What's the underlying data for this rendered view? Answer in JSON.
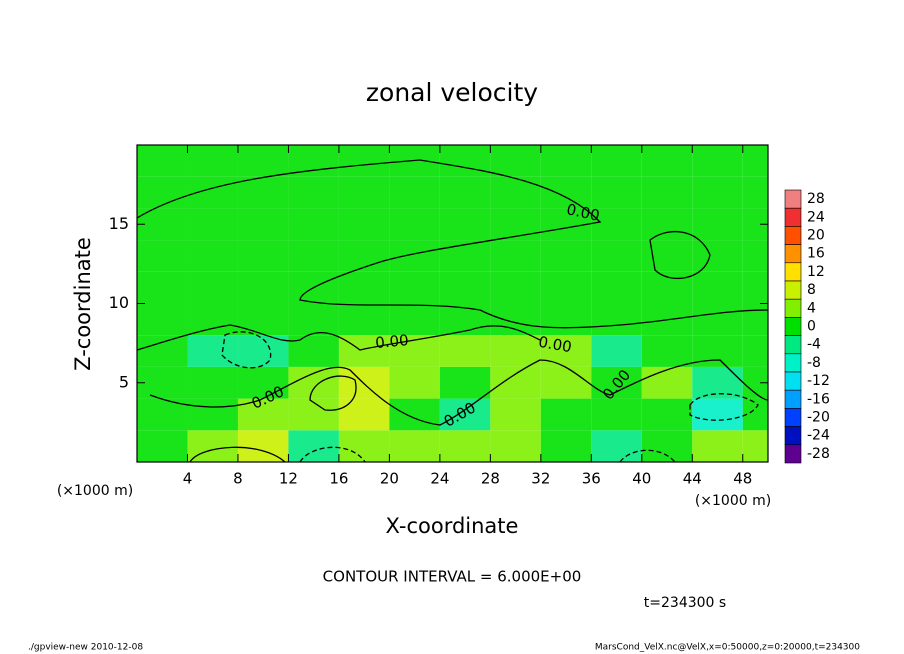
{
  "chart_data": {
    "type": "contour",
    "title": "zonal velocity",
    "x_label": "X-coordinate",
    "y_label": "Z-coordinate",
    "x_unit": "(×1000 m)",
    "y_unit": "(×1000 m)",
    "xlim": [
      0,
      50
    ],
    "ylim": [
      0,
      20
    ],
    "xticks": [
      4,
      8,
      12,
      16,
      20,
      24,
      28,
      32,
      36,
      40,
      44,
      48
    ],
    "yticks": [
      5,
      10,
      15
    ],
    "x": [
      2,
      6,
      10,
      14,
      18,
      22,
      26,
      30,
      34,
      38,
      42,
      46,
      50
    ],
    "z": [
      1,
      3,
      5,
      7,
      9,
      11,
      13,
      15,
      17,
      19
    ],
    "values": [
      [
        0,
        4,
        6,
        -6,
        4,
        2,
        4,
        2,
        0,
        -4,
        -2,
        4,
        4
      ],
      [
        0,
        -2,
        2,
        2,
        6,
        0,
        -4,
        2,
        0,
        -2,
        0,
        -8,
        -2
      ],
      [
        0,
        -2,
        0,
        2,
        6,
        2,
        -2,
        4,
        4,
        -2,
        2,
        -4,
        0
      ],
      [
        0,
        -4,
        -6,
        0,
        4,
        2,
        4,
        2,
        2,
        -4,
        -2,
        0,
        -2
      ],
      [
        0,
        -2,
        -2,
        -2,
        -2,
        0,
        -2,
        0,
        0,
        -2,
        -2,
        -2,
        -2
      ],
      [
        0,
        0,
        0,
        0,
        0,
        0,
        0,
        0,
        0,
        0,
        0,
        0,
        0
      ],
      [
        0,
        0,
        0,
        0,
        0,
        0,
        0,
        0,
        0,
        0,
        0,
        0,
        0
      ],
      [
        0,
        0,
        0,
        0,
        0,
        0,
        0,
        0,
        0,
        0,
        0,
        0,
        0
      ],
      [
        0,
        0,
        0,
        0,
        0,
        0,
        0,
        0,
        0,
        0,
        0,
        0,
        0
      ],
      [
        0,
        0,
        0,
        0,
        0,
        0,
        0,
        0,
        0,
        0,
        0,
        0,
        0
      ]
    ],
    "colorbar": {
      "levels": [
        28,
        24,
        20,
        16,
        12,
        8,
        4,
        0,
        -4,
        -8,
        -12,
        -16,
        -20,
        -24,
        -28
      ],
      "colors": [
        "#f08080",
        "#f03030",
        "#ff5000",
        "#ff9000",
        "#ffe000",
        "#c8f000",
        "#80f000",
        "#00e000",
        "#00e880",
        "#00f0c8",
        "#00e0f0",
        "#00a0ff",
        "#0040ff",
        "#0010c0",
        "#600090"
      ]
    },
    "contour_labels": [
      "0.00",
      "0.00",
      "0.00",
      "0.00",
      "0.00",
      "0.00"
    ],
    "contour_interval": "CONTOUR INTERVAL = 6.000E+00",
    "time": "t=234300 s",
    "footer_left": "./gpview-new   2010-12-08",
    "footer_right": "MarsCond_VelX.nc@VelX,x=0:50000,z=0:20000,t=234300"
  }
}
